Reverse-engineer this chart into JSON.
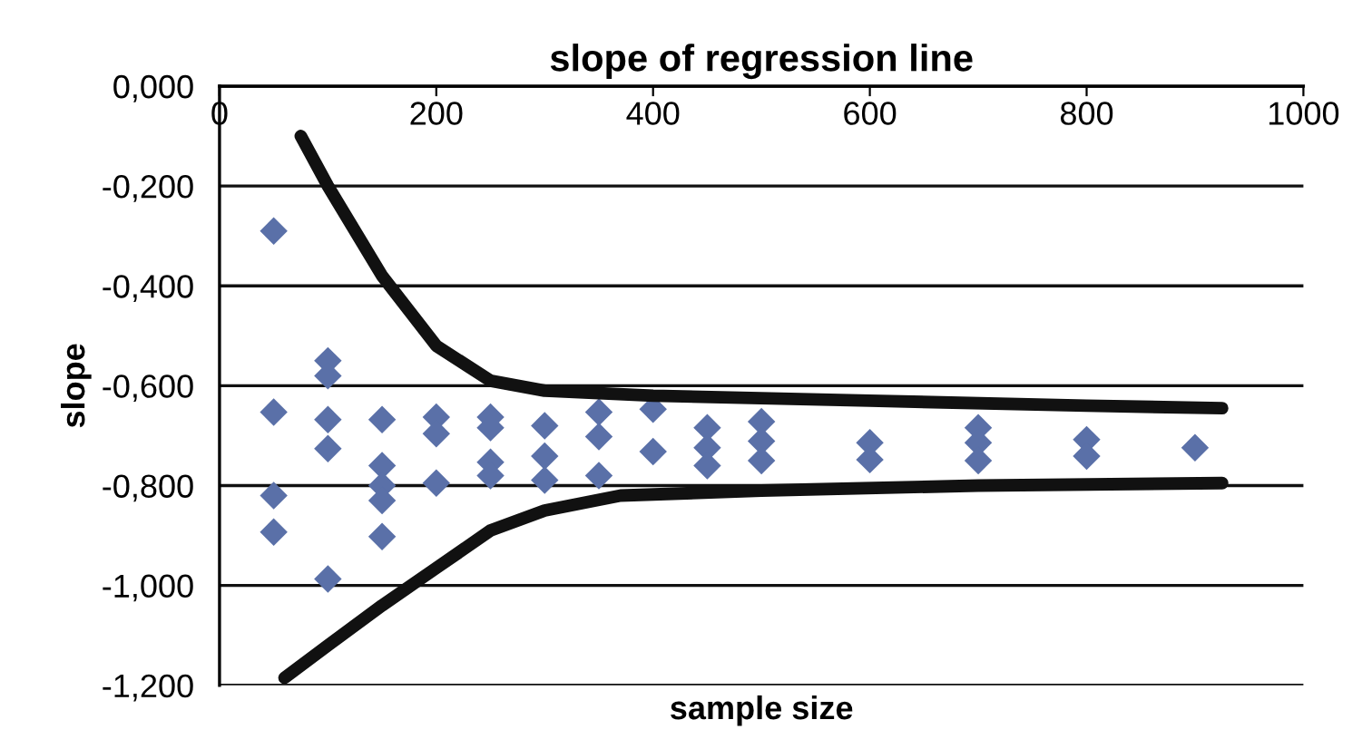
{
  "chart_data": {
    "type": "scatter",
    "title": "slope of regression line",
    "xlabel": "sample size",
    "ylabel": "slope",
    "xlim": [
      0,
      1000
    ],
    "xticks": [
      0,
      200,
      400,
      600,
      800,
      1000
    ],
    "ylim": [
      -1.2,
      0
    ],
    "yticks": [
      {
        "value": 0,
        "label": "0,000"
      },
      {
        "value": -0.2,
        "label": "-0,200"
      },
      {
        "value": -0.4,
        "label": "-0,400"
      },
      {
        "value": -0.6,
        "label": "-0,600"
      },
      {
        "value": -0.8,
        "label": "-0,800"
      },
      {
        "value": -1.0,
        "label": "-1,000"
      },
      {
        "value": -1.2,
        "label": "-1,200"
      }
    ],
    "grid": "y",
    "legend": false,
    "marker": "diamond",
    "series": [
      {
        "color": "#5a70a8",
        "x": [
          50,
          50,
          50,
          50,
          100,
          100,
          100,
          100,
          100,
          150,
          150,
          150,
          150,
          150,
          200,
          200,
          200,
          250,
          250,
          250,
          250,
          300,
          300,
          300,
          350,
          350,
          350,
          400,
          400,
          450,
          450,
          450,
          500,
          500,
          500,
          600,
          600,
          700,
          700,
          700,
          800,
          800,
          900
        ],
        "values": [
          -0.29,
          -0.653,
          -0.82,
          -0.893,
          -0.55,
          -0.58,
          -0.668,
          -0.726,
          -0.987,
          -0.668,
          -0.76,
          -0.8,
          -0.83,
          -0.902,
          -0.663,
          -0.696,
          -0.795,
          -0.663,
          -0.684,
          -0.753,
          -0.78,
          -0.68,
          -0.741,
          -0.789,
          -0.653,
          -0.702,
          -0.78,
          -0.647,
          -0.732,
          -0.684,
          -0.724,
          -0.76,
          -0.672,
          -0.711,
          -0.75,
          -0.714,
          -0.748,
          -0.684,
          -0.714,
          -0.75,
          -0.708,
          -0.741,
          -0.724
        ]
      },
      {
        "type": "line",
        "color": "#111111",
        "marker": "none",
        "x": [
          75,
          100,
          150,
          200,
          250,
          300,
          400,
          600,
          800,
          925
        ],
        "values": [
          -0.1,
          -0.2,
          -0.38,
          -0.52,
          -0.59,
          -0.61,
          -0.62,
          -0.63,
          -0.64,
          -0.645
        ]
      },
      {
        "type": "line",
        "color": "#111111",
        "marker": "none",
        "x": [
          60,
          100,
          150,
          200,
          250,
          300,
          370,
          500,
          700,
          925
        ],
        "values": [
          -1.185,
          -1.12,
          -1.04,
          -0.965,
          -0.89,
          -0.85,
          -0.82,
          -0.81,
          -0.8,
          -0.795
        ]
      }
    ]
  }
}
